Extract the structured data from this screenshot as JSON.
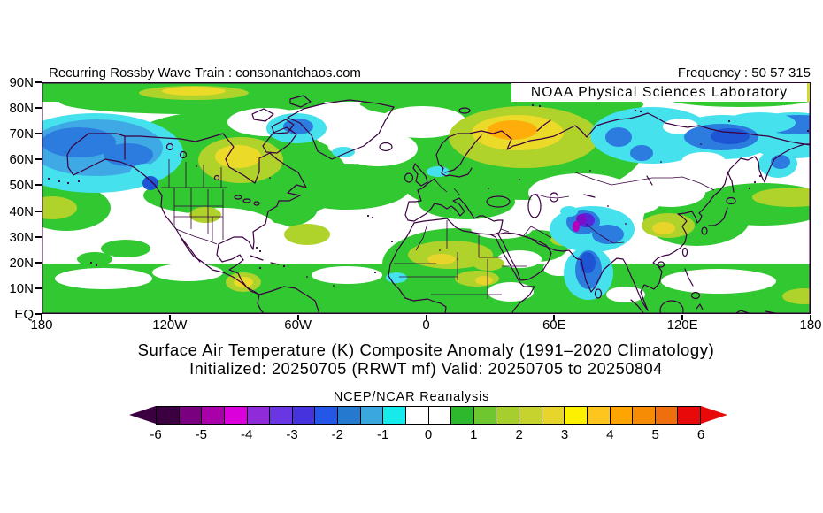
{
  "page": {
    "background": "#FFFFFF"
  },
  "header": {
    "left_text": "Recurring Rossby Wave Train : consonantchaos.com",
    "right_text": "Frequency : 50 57 315"
  },
  "map": {
    "overlay_label": "NOAA Physical Sciences Laboratory",
    "lat_ticks": [
      "90N",
      "80N",
      "70N",
      "60N",
      "50N",
      "40N",
      "30N",
      "20N",
      "10N",
      "EQ"
    ],
    "lon_ticks": [
      "180",
      "120W",
      "60W",
      "0",
      "60E",
      "120E",
      "180"
    ],
    "coast_color": "#3A0040"
  },
  "titles": {
    "line1": "Surface Air Temperature (K) Composite Anomaly (1991–2020 Climatology)",
    "line2": "Initialized: 20250705 (RRWT mf) Valid: 20250705 to 20250804"
  },
  "colorbar": {
    "label": "NCEP/NCAR Reanalysis",
    "tick_labels": [
      "-6",
      "-5",
      "-4",
      "-3",
      "-2",
      "-1",
      "0",
      "1",
      "2",
      "3",
      "4",
      "5",
      "6"
    ],
    "colors": [
      "#3B0040",
      "#79007E",
      "#A900A9",
      "#DB00DB",
      "#8F2BD8",
      "#6A35E2",
      "#4633DE",
      "#2456E8",
      "#2579CE",
      "#3AA8DE",
      "#16EAEA",
      "#FFFFFF",
      "#FFFFFF",
      "#2EB82E",
      "#6EC72F",
      "#A6CE2C",
      "#C6D32F",
      "#E7D52B",
      "#FDF000",
      "#FFC51F",
      "#FFA502",
      "#F68C06",
      "#EF6F0E",
      "#E80A0A"
    ],
    "arrow_left_color": "#3B0040",
    "arrow_right_color": "#E80A0A"
  },
  "chart_data": {
    "type": "heatmap",
    "subtype": "filled-contour global map",
    "title": "Surface Air Temperature (K) Composite Anomaly (1991–2020 Climatology)",
    "subtitle": "Initialized: 20250705 (RRWT mf) Valid: 20250705 to 20250804",
    "source_label": "NCEP/NCAR Reanalysis",
    "variable": "Surface Air Temperature Composite Anomaly",
    "units": "K",
    "domain": {
      "lat_range": [
        "EQ",
        "90N"
      ],
      "lon_range": [
        "180W",
        "180E"
      ]
    },
    "x_ticks": [
      "180",
      "120W",
      "60W",
      "0",
      "60E",
      "120E",
      "180"
    ],
    "y_ticks": [
      "90N",
      "80N",
      "70N",
      "60N",
      "50N",
      "40N",
      "30N",
      "20N",
      "10N",
      "EQ"
    ],
    "colorbar": {
      "min": -6,
      "max": 6,
      "step": 0.5,
      "tick_values": [
        -6,
        -5,
        -4,
        -3,
        -2,
        -1,
        0,
        1,
        2,
        3,
        4,
        5,
        6
      ]
    },
    "features": [
      {
        "region": "Alaska / Bering Sea",
        "lat": "55-70N",
        "lon": "180-140W",
        "anomaly_K": -2.5
      },
      {
        "region": "British Columbia coast",
        "lat": "50N",
        "lon": "128W",
        "anomaly_K": -3
      },
      {
        "region": "Northwest Canada interior",
        "lat": "58-65N",
        "lon": "95-115W",
        "anomaly_K": 2.5
      },
      {
        "region": "Arctic band near 85N, 100-140W",
        "anomaly_K": 2
      },
      {
        "region": "Baffin Bay west of Greenland",
        "lat": "70-74N",
        "lon": "55-65W",
        "anomaly_K": -2
      },
      {
        "region": "Southern United States",
        "anomaly_K": 0
      },
      {
        "region": "Tropical Atlantic / Africa / SE Asia belt",
        "anomaly_K": 1
      },
      {
        "region": "Sahara (Algeria-Libya-Chad)",
        "anomaly_K": 2
      },
      {
        "region": "Scandinavia / Northwest Russia",
        "lat": "60-70N",
        "lon": "30-55E",
        "anomaly_K": 3.5
      },
      {
        "region": "Central-East Siberia",
        "lat": "55-75N",
        "lon": "85-140E",
        "anomaly_K": -2.5
      },
      {
        "region": "Chukotka / East Siberian coast",
        "anomaly_K": -2.5
      },
      {
        "region": "Kamchatka",
        "anomaly_K": -2
      },
      {
        "region": "Pamir / Karakoram",
        "lat": "33-38N",
        "lon": "68-78E",
        "anomaly_K": -4.5
      },
      {
        "region": "Tibetan Plateau",
        "anomaly_K": -3
      },
      {
        "region": "Western and central India",
        "lat": "10-25N",
        "lon": "70-85E",
        "anomaly_K": -2.5
      },
      {
        "region": "Sichuan / south-central China",
        "anomaly_K": 2.5
      },
      {
        "region": "North Pacific 35-45N band",
        "anomaly_K": 1.5
      },
      {
        "region": "Southern Mexico",
        "anomaly_K": 2.5
      },
      {
        "region": "Subtropical Atlantic east of Florida",
        "anomaly_K": 1.5
      }
    ]
  }
}
